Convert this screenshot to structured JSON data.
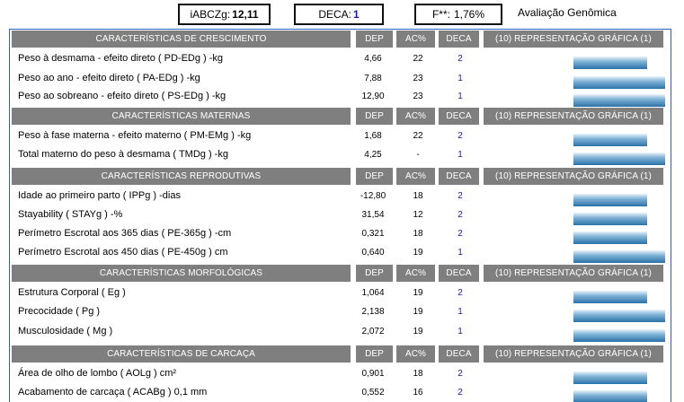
{
  "summary": {
    "iabczg_label": "iABCZg:",
    "iabczg_value": "12,11",
    "deca_label": "DECA:",
    "deca_value": "1",
    "f_label": "F**:",
    "f_value": "1,76%",
    "title": "Avaliação Genômica"
  },
  "columns": {
    "dep": "DEP",
    "ac": "AC%",
    "deca": "DECA",
    "representation": "(10) REPRESENTAÇÃO GRÁFICA (1)"
  },
  "colors": {
    "header_bg": "#7f7f7f",
    "frame": "#2e5fc4",
    "deca_text": "#1a1aa8",
    "bar": "#2a72aa"
  },
  "sections": [
    {
      "title": "CARACTERÍSTICAS DE CRESCIMENTO",
      "rows": [
        {
          "label": "Peso à desmama - efeito direto ( PD-EDg ) -kg",
          "dep": "4,66",
          "ac": "22",
          "deca": "2",
          "level": 0.41
        },
        {
          "label": "Peso ao ano - efeito direto ( PA-EDg ) -kg",
          "dep": "7,88",
          "ac": "23",
          "deca": "1",
          "level": 0.51
        },
        {
          "label": "Peso ao sobreano - efeito direto ( PS-EDg ) -kg",
          "dep": "12,90",
          "ac": "23",
          "deca": "1",
          "level": 0.51
        }
      ]
    },
    {
      "title": "CARACTERÍSTICAS MATERNAS",
      "rows": [
        {
          "label": "Peso à fase materna - efeito materno ( PM-EMg ) -kg",
          "dep": "1,68",
          "ac": "22",
          "deca": "2",
          "level": 0.41
        },
        {
          "label": "Total materno do peso à desmama ( TMDg ) -kg",
          "dep": "4,25",
          "ac": "-",
          "deca": "1",
          "level": 0.51
        }
      ]
    },
    {
      "title": "CARACTERÍSTICAS REPRODUTIVAS",
      "rows": [
        {
          "label": "Idade ao primeiro parto ( IPPg ) -dias",
          "dep": "-12,80",
          "ac": "18",
          "deca": "2",
          "level": 0.41
        },
        {
          "label": "Stayability ( STAYg ) -%",
          "dep": "31,54",
          "ac": "12",
          "deca": "2",
          "level": 0.41
        },
        {
          "label": "Perímetro Escrotal aos 365 dias ( PE-365g ) -cm",
          "dep": "0,321",
          "ac": "18",
          "deca": "2",
          "level": 0.41
        },
        {
          "label": "Perímetro Escrotal aos 450 dias ( PE-450g ) cm",
          "dep": "0,640",
          "ac": "19",
          "deca": "1",
          "level": 0.51
        }
      ]
    },
    {
      "title": "CARACTERÍSTICAS MORFOLÓGICAS",
      "rows": [
        {
          "label": "Estrutura Corporal ( Eg )",
          "dep": "1,064",
          "ac": "19",
          "deca": "2",
          "level": 0.41
        },
        {
          "label": "Precocidade ( Pg )",
          "dep": "2,138",
          "ac": "19",
          "deca": "1",
          "level": 0.51
        },
        {
          "label": "Musculosidade ( Mg )",
          "dep": "2,072",
          "ac": "19",
          "deca": "1",
          "level": 0.51
        }
      ]
    },
    {
      "title": "CARACTERÍSTICAS DE CARCAÇA",
      "rows": [
        {
          "label": "Área de olho de lombo ( AOLg ) cm²",
          "dep": "0,901",
          "ac": "18",
          "deca": "2",
          "level": 0.41
        },
        {
          "label": "Acabamento de carcaça ( ACABg ) 0,1 mm",
          "dep": "0,552",
          "ac": "16",
          "deca": "2",
          "level": 0.41
        }
      ]
    }
  ]
}
